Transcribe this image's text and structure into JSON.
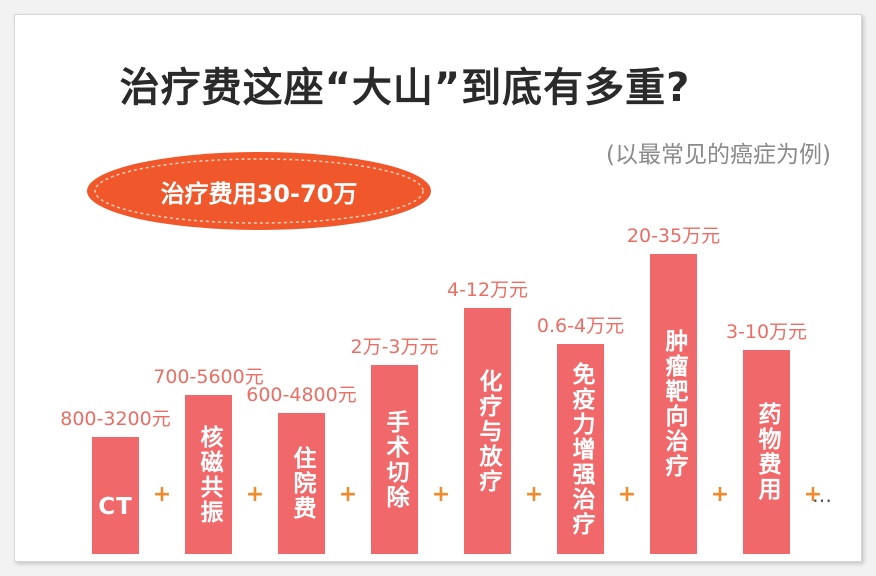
{
  "header": {
    "title": "治疗费这座“大山”到底有多重?",
    "subtitle": "(以最常见的癌症为例)",
    "badge": "治疗费用30-70万"
  },
  "colors": {
    "bar": "#f0686a",
    "value_label": "#ec6d63",
    "plus": "#f08a2a",
    "badge_fill": "#f0572b"
  },
  "plus_sign": "+",
  "ellipsis": "…",
  "chart_data": {
    "type": "bar",
    "title": "治疗费这座“大山”到底有多重?",
    "categories": [
      "CT",
      "核磁共振",
      "住院费",
      "手术切除",
      "化疗与放疗",
      "免疫力增强治疗",
      "肿瘤靶向治疗",
      "药物费用"
    ],
    "value_labels": [
      "800-3200元",
      "700-5600元",
      "600-4800元",
      "2万-3万元",
      "4-12万元",
      "0.6-4万元",
      "20-35万元",
      "3-10万元"
    ],
    "ranges_yuan": [
      [
        800,
        3200
      ],
      [
        700,
        5600
      ],
      [
        600,
        4800
      ],
      [
        20000,
        30000
      ],
      [
        40000,
        120000
      ],
      [
        6000,
        40000
      ],
      [
        200000,
        350000
      ],
      [
        30000,
        100000
      ]
    ],
    "relative_height": [
      0.39,
      0.53,
      0.47,
      0.63,
      0.82,
      0.7,
      1.0,
      0.68
    ],
    "xlabel": "",
    "ylabel": ""
  }
}
